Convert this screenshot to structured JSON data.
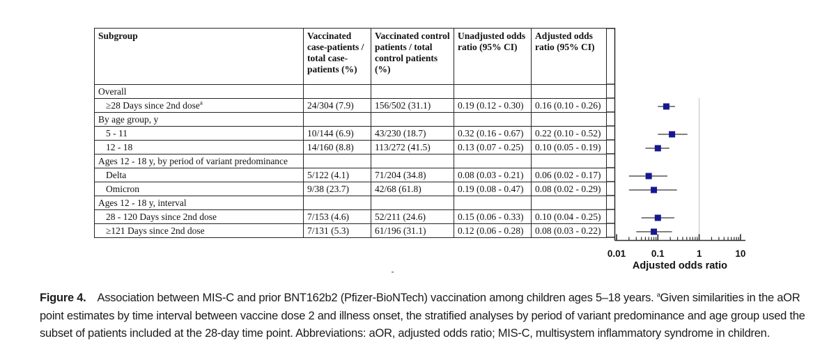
{
  "table": {
    "headers": [
      "Subgroup",
      "Vaccinated case-patients / total case-patients (%)",
      "Vaccinated control patients / total control patients (%)",
      "Unadjusted odds ratio (95% CI)",
      "Adjusted odds ratio (95% CI)"
    ],
    "rows": [
      {
        "type": "section",
        "label": "Overall"
      },
      {
        "type": "data",
        "label": "≥28  Days since 2nd dose",
        "sup": "a",
        "cells": [
          "24/304 (7.9)",
          "156/502 (31.1)",
          "0.19 (0.12 - 0.30)",
          "0.16 (0.10 - 0.26)"
        ]
      },
      {
        "type": "section",
        "label": "By age group, y"
      },
      {
        "type": "data",
        "label": "5 - 11",
        "sup": "",
        "cells": [
          "10/144 (6.9)",
          "43/230 (18.7)",
          "0.32 (0.16 - 0.67)",
          "0.22 (0.10 - 0.52)"
        ]
      },
      {
        "type": "data",
        "label": "12 - 18",
        "sup": "",
        "cells": [
          "14/160 (8.8)",
          "113/272 (41.5)",
          "0.13 (0.07 - 0.25)",
          "0.10 (0.05 - 0.19)"
        ]
      },
      {
        "type": "section",
        "label": "Ages 12 - 18 y, by period of variant predominance"
      },
      {
        "type": "data",
        "label": "Delta",
        "sup": "",
        "cells": [
          "5/122 (4.1)",
          "71/204 (34.8)",
          "0.08 (0.03 - 0.21)",
          "0.06 (0.02 - 0.17)"
        ]
      },
      {
        "type": "data",
        "label": "Omicron",
        "sup": "",
        "cells": [
          "9/38 (23.7)",
          "42/68 (61.8)",
          "0.19 (0.08 - 0.47)",
          "0.08 (0.02 - 0.29)"
        ]
      },
      {
        "type": "section",
        "label": "Ages 12 - 18 y, interval"
      },
      {
        "type": "data",
        "label": "28 - 120 Days since 2nd dose",
        "sup": "",
        "cells": [
          "7/153 (4.6)",
          "52/211 (24.6)",
          "0.15 (0.06 - 0.33)",
          "0.10 (0.04 - 0.25)"
        ]
      },
      {
        "type": "data",
        "label": "≥121 Days since 2nd dose",
        "sup": "",
        "cells": [
          "7/131 (5.3)",
          "61/196 (31.1)",
          "0.12 (0.06 - 0.28)",
          "0.08 (0.03 - 0.22)"
        ]
      }
    ]
  },
  "chart_data": {
    "type": "scatter",
    "variant": "forest-plot",
    "xlabel": "Adjusted odds ratio",
    "x_scale": "log",
    "xlim": [
      0.01,
      10
    ],
    "x_ticks": [
      0.01,
      0.1,
      1,
      10
    ],
    "x_tick_labels": [
      "0.01",
      "0.1",
      "1",
      "10"
    ],
    "reference_line_x": 1,
    "marker_color": "#16188f",
    "ci_color": "#6e6e6e",
    "reference_line_color": "#d2d2d2",
    "axis_color": "#2a2a2a",
    "points": [
      {
        "label": "≥28 Days since 2nd dose",
        "aor": 0.16,
        "ci_low": 0.1,
        "ci_high": 0.26,
        "table_row": 1
      },
      {
        "label": "5 - 11",
        "aor": 0.22,
        "ci_low": 0.1,
        "ci_high": 0.52,
        "table_row": 3
      },
      {
        "label": "12 - 18",
        "aor": 0.1,
        "ci_low": 0.05,
        "ci_high": 0.19,
        "table_row": 4
      },
      {
        "label": "Delta",
        "aor": 0.06,
        "ci_low": 0.02,
        "ci_high": 0.17,
        "table_row": 6
      },
      {
        "label": "Omicron",
        "aor": 0.08,
        "ci_low": 0.02,
        "ci_high": 0.29,
        "table_row": 7
      },
      {
        "label": "28 - 120 Days since 2nd dose",
        "aor": 0.1,
        "ci_low": 0.04,
        "ci_high": 0.25,
        "table_row": 9
      },
      {
        "label": "≥121 Days since 2nd dose",
        "aor": 0.08,
        "ci_low": 0.03,
        "ci_high": 0.22,
        "table_row": 10
      }
    ]
  },
  "caption": {
    "figure_label": "Figure 4.",
    "text_before_sup": "Association between MIS-C and prior BNT162b2 (Pfizer-BioNTech) vaccination among children ages 5–18 years. ",
    "superscript": "a",
    "text_after_sup": "Given similarities in the aOR point estimates by time interval between vaccine dose 2 and illness onset, the stratified analyses by period of variant predominance and age group used the subset of patients included at the 28-day time point. Abbreviations: aOR, adjusted odds ratio; MIS-C, multisystem inflammatory syndrome in children."
  }
}
